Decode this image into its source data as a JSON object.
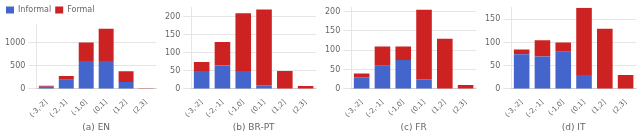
{
  "chart_data": [
    {
      "type": "bar",
      "xlabel": "(a) EN",
      "stacked": true,
      "grid": true,
      "legend": "upper left",
      "categories": [
        "(-3,-2]",
        "(-2,-1]",
        "(-1,0]",
        "(0,1]",
        "(1,2]",
        "(2,3]"
      ],
      "series": [
        {
          "name": "Informal",
          "color": "#4466cc",
          "values": [
            50,
            200,
            600,
            600,
            150,
            0
          ]
        },
        {
          "name": "Formal",
          "color": "#cc2222",
          "values": [
            20,
            80,
            400,
            700,
            230,
            5
          ]
        }
      ],
      "ylim": [
        0,
        1400
      ],
      "yticks": [
        0,
        500,
        1000
      ]
    },
    {
      "type": "bar",
      "xlabel": "(b) BR-PT",
      "stacked": true,
      "grid": true,
      "categories": [
        "(-3,-2]",
        "(-2,-1]",
        "(-1,0]",
        "(0,1]",
        "(1,2]",
        "(2,3]"
      ],
      "series": [
        {
          "name": "Informal",
          "color": "#4466cc",
          "values": [
            50,
            65,
            50,
            10,
            0,
            0
          ]
        },
        {
          "name": "Formal",
          "color": "#cc2222",
          "values": [
            25,
            65,
            160,
            210,
            50,
            8
          ]
        }
      ],
      "ylim": [
        0,
        225
      ],
      "yticks": [
        0,
        50,
        100,
        150,
        200
      ]
    },
    {
      "type": "bar",
      "xlabel": "(c) FR",
      "stacked": true,
      "grid": true,
      "categories": [
        "(-3,-2]",
        "(-2,-1]",
        "(-1,0]",
        "(0,1]",
        "(1,2]",
        "(2,3]"
      ],
      "series": [
        {
          "name": "Informal",
          "color": "#4466cc",
          "values": [
            30,
            60,
            75,
            25,
            0,
            0
          ]
        },
        {
          "name": "Formal",
          "color": "#cc2222",
          "values": [
            10,
            50,
            35,
            180,
            130,
            10
          ]
        }
      ],
      "ylim": [
        0,
        210
      ],
      "yticks": [
        0,
        50,
        100,
        150,
        200
      ]
    },
    {
      "type": "bar",
      "xlabel": "(d) IT",
      "stacked": true,
      "grid": true,
      "categories": [
        "(-3,-2]",
        "(-2,-1]",
        "(-1,0]",
        "(0,1]",
        "(1,2]",
        "(2,3]"
      ],
      "series": [
        {
          "name": "Informal",
          "color": "#4466cc",
          "values": [
            75,
            70,
            80,
            30,
            0,
            0
          ]
        },
        {
          "name": "Formal",
          "color": "#cc2222",
          "values": [
            10,
            35,
            20,
            145,
            130,
            30
          ]
        }
      ],
      "ylim": [
        0,
        175
      ],
      "yticks": [
        0,
        50,
        100,
        150
      ]
    }
  ]
}
